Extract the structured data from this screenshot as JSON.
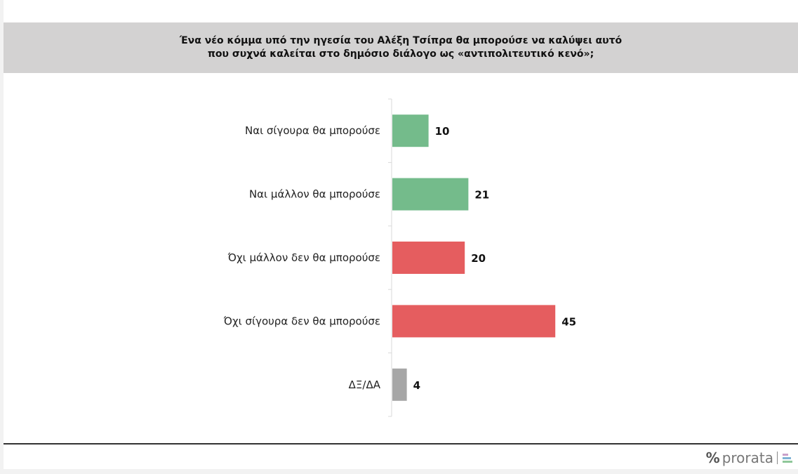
{
  "chart_data": {
    "type": "bar",
    "orientation": "horizontal",
    "title": "Ένα νέο κόμμα υπό την ηγεσία του Αλέξη Τσίπρα θα μπορούσε να καλύψει αυτό\nπου συχνά καλείται στο δημόσιο διάλογο ως «αντιπολιτευτικό κενό»;",
    "categories": [
      "Ναι σίγουρα θα μπορούσε",
      "Ναι μάλλον θα μπορούσε",
      "Όχι μάλλον δεν θα μπορούσε",
      "Όχι σίγουρα δεν θα μπορούσε",
      "ΔΞ/ΔΑ"
    ],
    "values": [
      10,
      21,
      20,
      45,
      4
    ],
    "colors": [
      "#74bb8b",
      "#74bb8b",
      "#e55d5f",
      "#e55d5f",
      "#a6a6a6"
    ],
    "xlabel": "",
    "ylabel": "",
    "grid": false,
    "legend": "none"
  },
  "footer": {
    "logo_text": "prorata",
    "logo_symbol": "%"
  }
}
